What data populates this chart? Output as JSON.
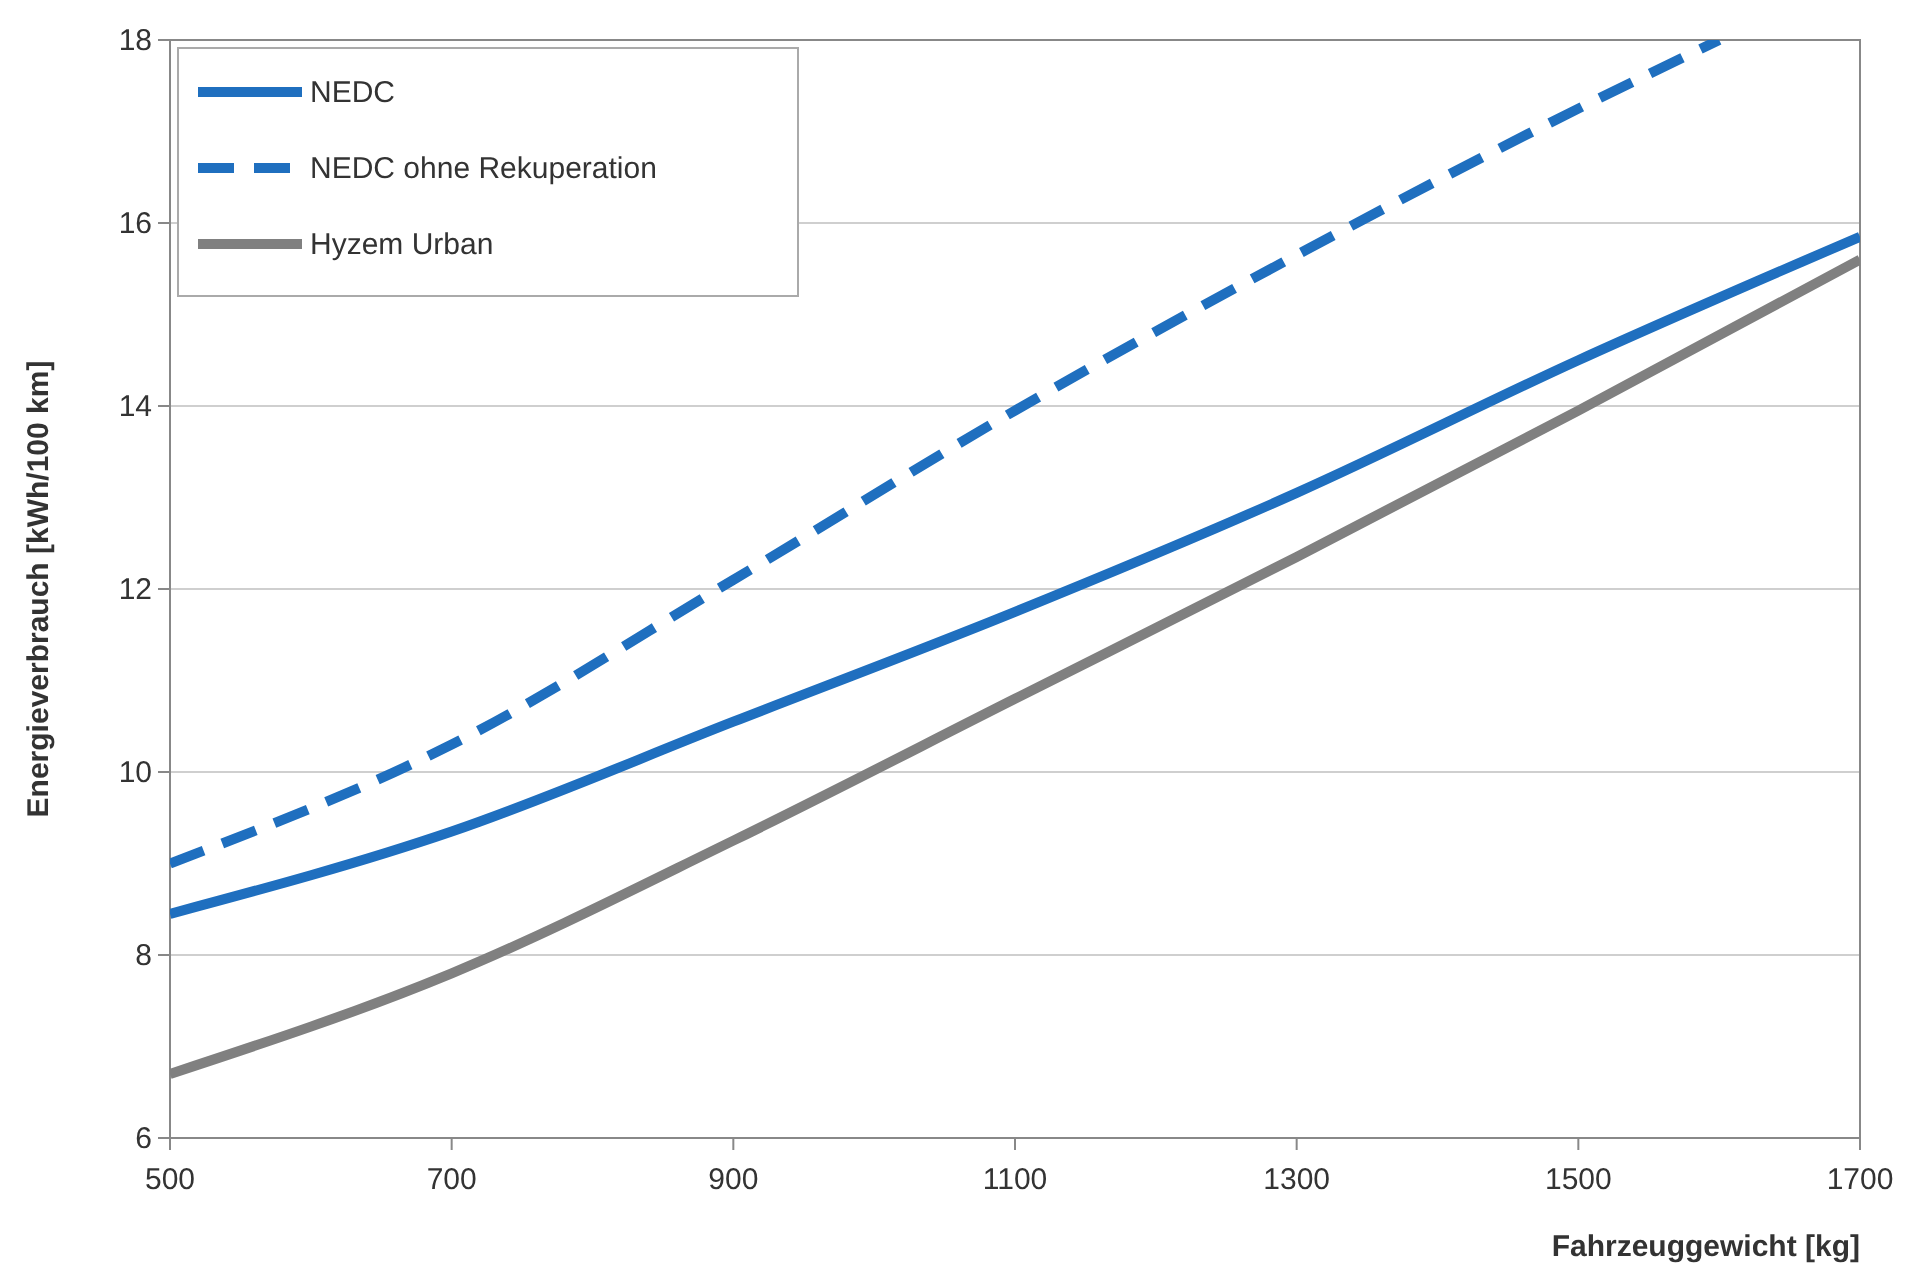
{
  "chart_data": {
    "type": "line",
    "xlabel": "Fahrzeuggewicht [kg]",
    "ylabel": "Energieverbrauch [kWh/100 km]",
    "x": [
      500,
      700,
      900,
      1100,
      1300,
      1500,
      1700
    ],
    "series": [
      {
        "name": "NEDC",
        "color": "#1f6fbf",
        "line_style": "solid",
        "values": [
          8.45,
          9.35,
          10.55,
          11.75,
          13.05,
          14.5,
          15.85
        ]
      },
      {
        "name": "NEDC ohne Rekuperation",
        "color": "#1f6fbf",
        "line_style": "dashed",
        "x": [
          500,
          700,
          900,
          1100,
          1300,
          1500,
          1600
        ],
        "values": [
          9.0,
          10.3,
          12.1,
          13.95,
          15.65,
          17.25,
          18
        ]
      },
      {
        "name": "Hyzem Urban",
        "color": "#808080",
        "line_style": "solid",
        "values": [
          6.7,
          7.8,
          9.25,
          10.8,
          12.35,
          13.95,
          15.6
        ]
      }
    ],
    "xlim": [
      500,
      1700
    ],
    "xticks": [
      500,
      700,
      900,
      1100,
      1300,
      1500,
      1700
    ],
    "ylim": [
      6,
      18
    ],
    "yticks": [
      6,
      8,
      10,
      12,
      14,
      16,
      18
    ],
    "grid": "y",
    "legend": "top left",
    "marker": "none"
  }
}
